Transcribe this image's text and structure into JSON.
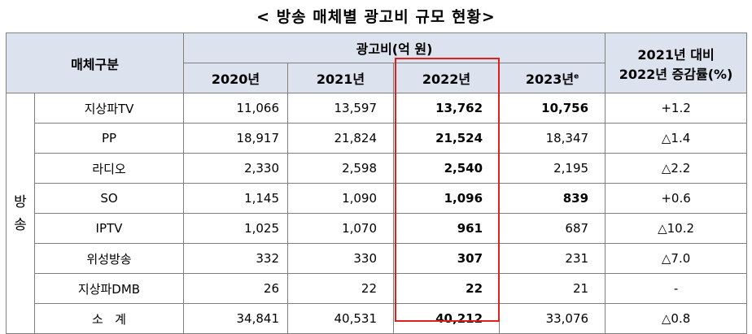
{
  "title": "< 방송 매체별 광고비 규모 현황>",
  "header": {
    "category": "매체구분",
    "adspend": "광고비(억 원)",
    "change_line1": "2021년 대비",
    "change_line2": "2022년 증감률(%)",
    "years": [
      "2020년",
      "2021년",
      "2022년",
      "2023년"
    ],
    "year_2023_sup": "e"
  },
  "group_label": [
    "방",
    "송"
  ],
  "rows": [
    {
      "name": "지상파TV",
      "y2020": "11,066",
      "y2021": "13,597",
      "y2022": "13,762",
      "y2023": "10,756",
      "change": "+1.2"
    },
    {
      "name": "PP",
      "y2020": "18,917",
      "y2021": "21,824",
      "y2022": "21,524",
      "y2023": "18,347",
      "change": "△1.4"
    },
    {
      "name": "라디오",
      "y2020": "2,330",
      "y2021": "2,598",
      "y2022": "2,540",
      "y2023": "2,195",
      "change": "△2.2"
    },
    {
      "name": "SO",
      "y2020": "1,145",
      "y2021": "1,090",
      "y2022": "1,096",
      "y2023": "839",
      "change": "+0.6"
    },
    {
      "name": "IPTV",
      "y2020": "1,025",
      "y2021": "1,070",
      "y2022": "961",
      "y2023": "687",
      "change": "△10.2"
    },
    {
      "name": "위성방송",
      "y2020": "332",
      "y2021": "330",
      "y2022": "307",
      "y2023": "231",
      "change": "△7.0"
    },
    {
      "name": "지상파DMB",
      "y2020": "26",
      "y2021": "22",
      "y2022": "22",
      "y2023": "21",
      "change": "-"
    }
  ],
  "total": {
    "name": "소   계",
    "y2020": "34,841",
    "y2021": "40,531",
    "y2022": "40,212",
    "y2023": "33,076",
    "change": "△0.8"
  },
  "colors": {
    "header_bg": "#dce3ef",
    "highlight": "#e0201c"
  }
}
